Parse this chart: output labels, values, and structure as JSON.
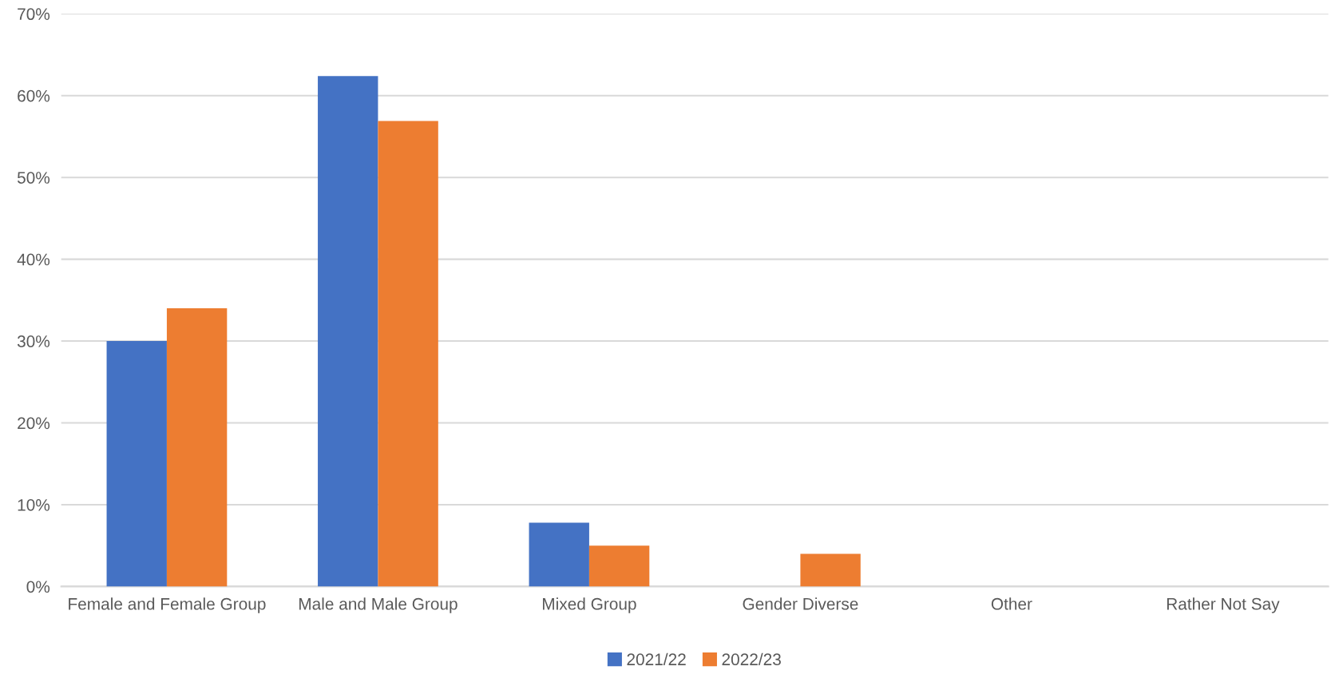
{
  "chart_data": {
    "type": "bar",
    "categories": [
      "Female and Female Group",
      "Male and Male Group",
      "Mixed Group",
      "Gender Diverse",
      "Other",
      "Rather Not Say"
    ],
    "series": [
      {
        "name": "2021/22",
        "color": "#4472c4",
        "values": [
          30,
          62.4,
          7.8,
          0,
          0,
          0
        ]
      },
      {
        "name": "2022/23",
        "color": "#ed7d31",
        "values": [
          34,
          56.9,
          5.0,
          4.0,
          0,
          0
        ]
      }
    ],
    "ylim": [
      0,
      70
    ],
    "yticks": [
      {
        "value": 0,
        "label": "0%"
      },
      {
        "value": 10,
        "label": "10%"
      },
      {
        "value": 20,
        "label": "20%"
      },
      {
        "value": 30,
        "label": "30%"
      },
      {
        "value": 40,
        "label": "40%"
      },
      {
        "value": 50,
        "label": "50%"
      },
      {
        "value": 60,
        "label": "60%"
      },
      {
        "value": 70,
        "label": "70%"
      }
    ],
    "grid": "y",
    "legend": "bottom"
  }
}
